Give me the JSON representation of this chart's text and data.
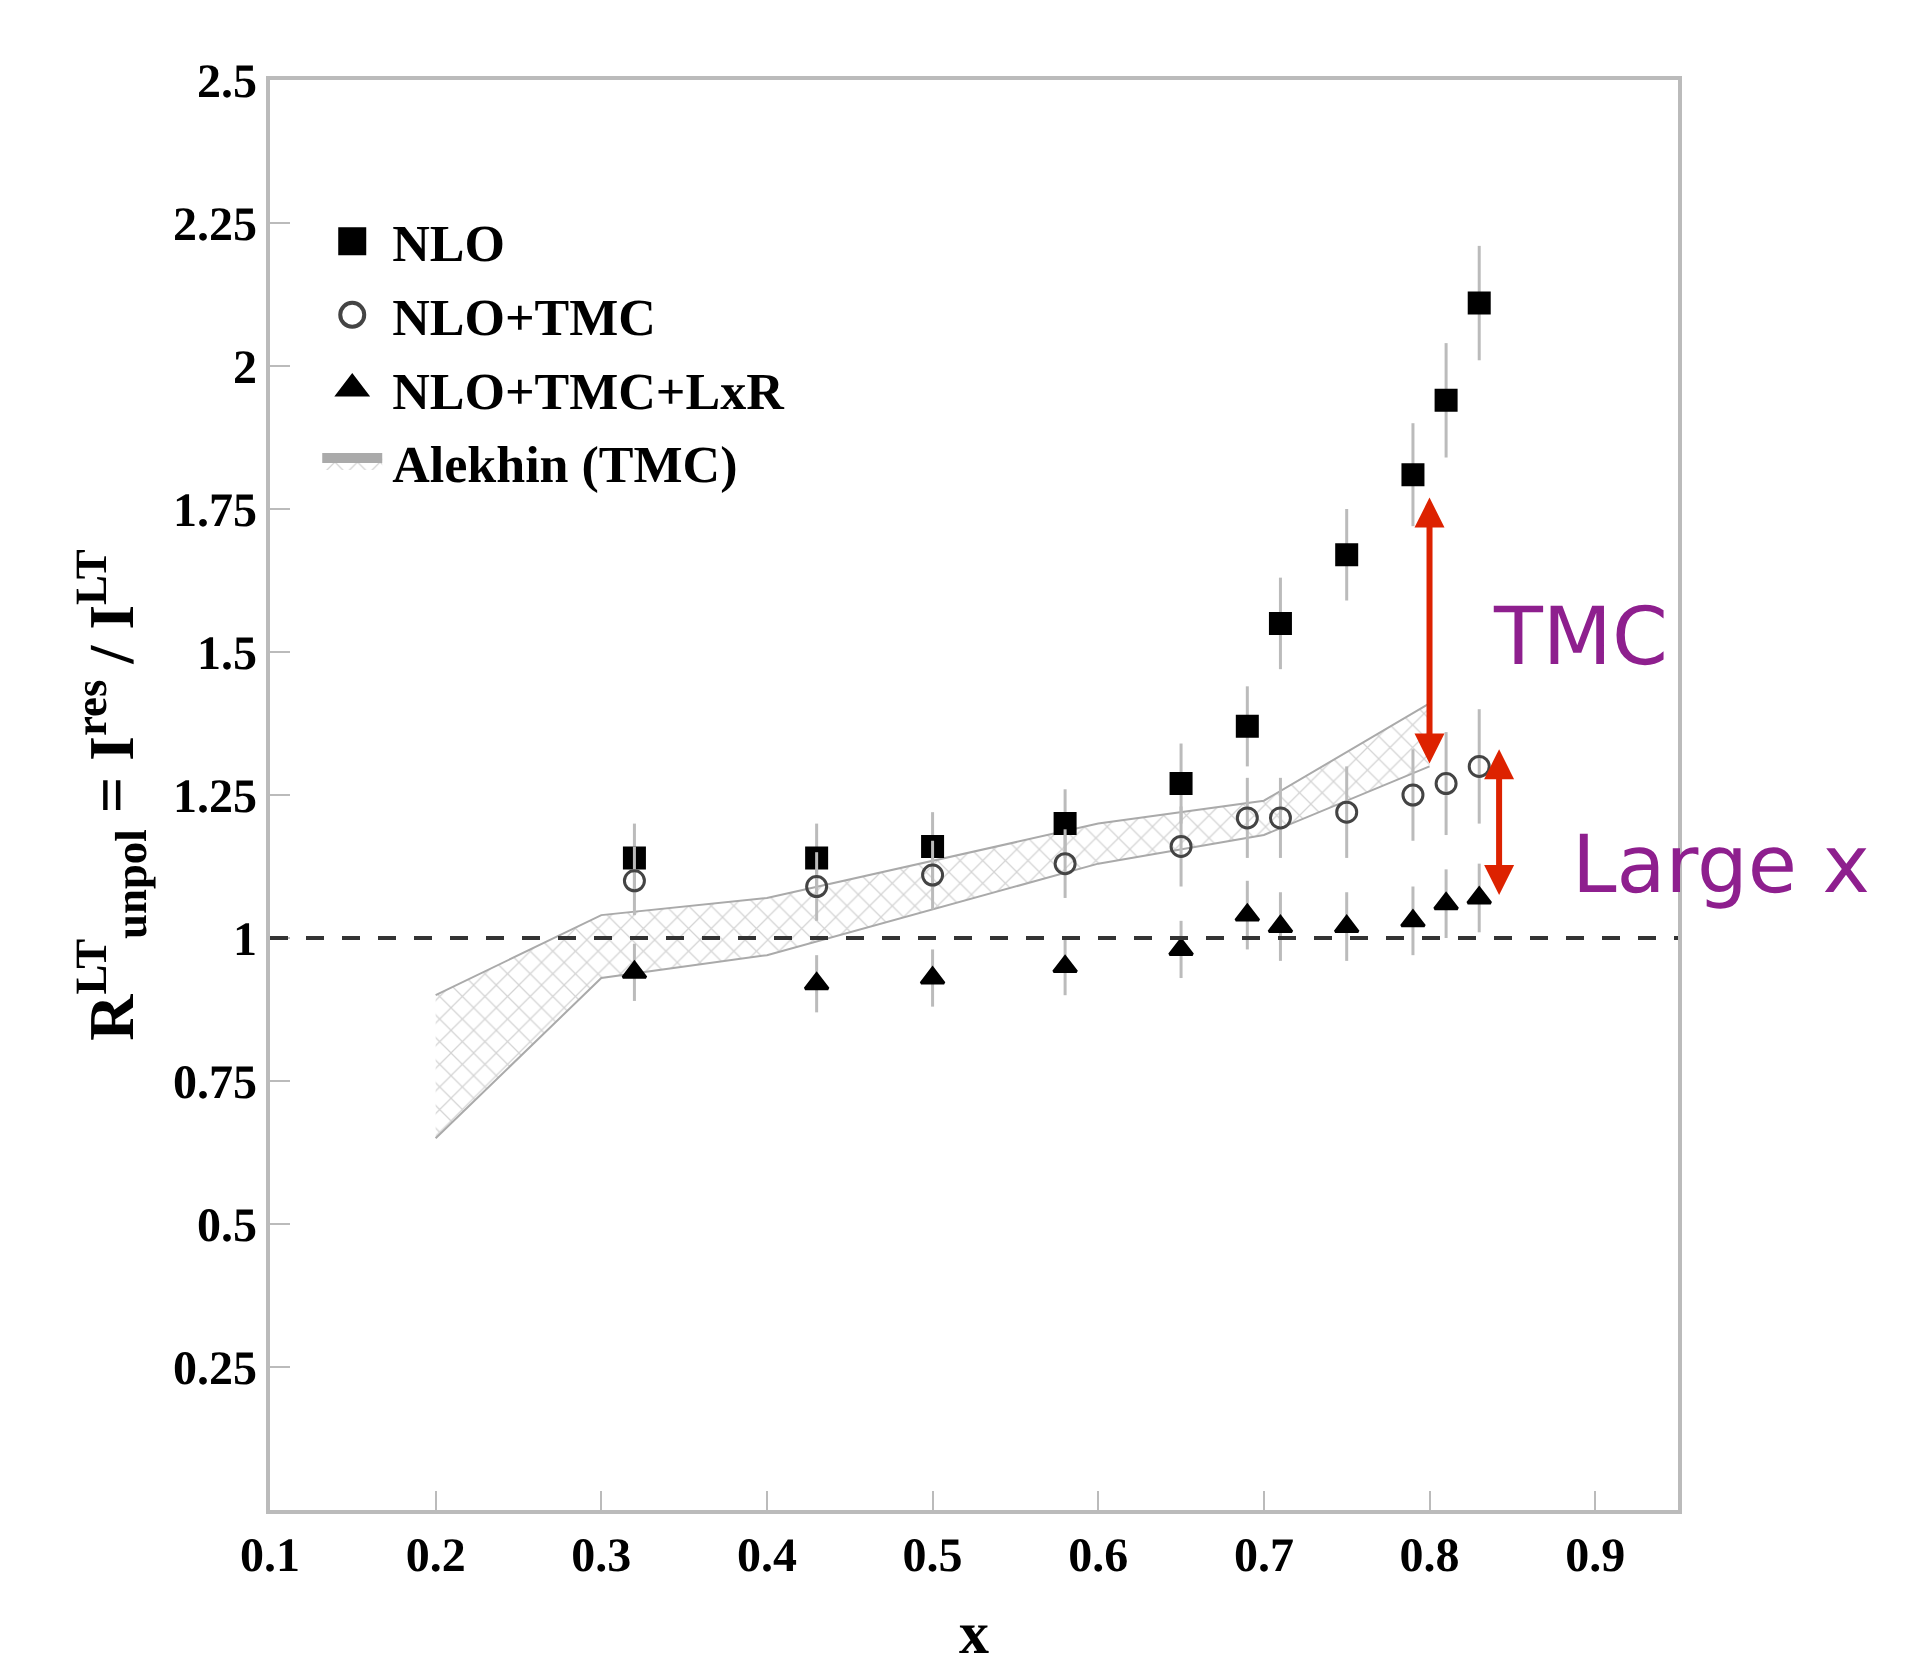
{
  "chart_data": {
    "type": "scatter",
    "xlabel": "x",
    "ylabel": "R$^{LT}$$_{unpol}$ = I$^{res}$ / I$^{LT}$",
    "x": [
      0.32,
      0.43,
      0.5,
      0.58,
      0.65,
      0.69,
      0.71,
      0.75,
      0.79,
      0.81,
      0.83
    ],
    "series": [
      {
        "name": "NLO",
        "color": "#000000",
        "marker": "square",
        "values": [
          1.14,
          1.14,
          1.16,
          1.2,
          1.27,
          1.37,
          1.55,
          1.67,
          1.81,
          1.94,
          2.11
        ],
        "errors": [
          0.06,
          0.06,
          0.06,
          0.06,
          0.07,
          0.07,
          0.08,
          0.08,
          0.09,
          0.1,
          0.1
        ]
      },
      {
        "name": "NLO+TMC",
        "color": "#444444",
        "marker": "circle",
        "values": [
          1.1,
          1.09,
          1.11,
          1.13,
          1.16,
          1.21,
          1.21,
          1.22,
          1.25,
          1.27,
          1.3
        ],
        "errors": [
          0.06,
          0.06,
          0.06,
          0.06,
          0.07,
          0.07,
          0.07,
          0.08,
          0.08,
          0.09,
          0.1
        ]
      },
      {
        "name": "NLO+TMC+LxR",
        "color": "#000000",
        "marker": "triangle",
        "values": [
          0.94,
          0.92,
          0.93,
          0.95,
          0.98,
          1.04,
          1.02,
          1.02,
          1.03,
          1.06,
          1.07
        ],
        "errors": [
          0.05,
          0.05,
          0.05,
          0.05,
          0.05,
          0.06,
          0.06,
          0.06,
          0.06,
          0.06,
          0.06
        ]
      },
      {
        "type": "line",
        "color": "#aaaaaa",
        "x": [
          0.2,
          0.3,
          0.4,
          0.6,
          0.7,
          0.8
        ],
        "values": [
          0.65,
          0.93,
          0.97,
          1.13,
          1.18,
          1.3
        ]
      },
      {
        "name": "Alekhin (TMC)",
        "type": "area",
        "color": "#aaaaaa",
        "x": [
          0.2,
          0.3,
          0.4,
          0.6,
          0.7,
          0.8
        ],
        "values": [
          0.9,
          1.04,
          1.07,
          1.2,
          1.24,
          1.41
        ]
      }
    ],
    "ref_lines": [
      {
        "axis": "y",
        "value": 1,
        "color": "#333333",
        "line_style": "dashed"
      }
    ],
    "annotations": [
      "TMC",
      "Large x"
    ],
    "xlim": [
      0.1,
      0.95
    ],
    "ylim": [
      0,
      2.5
    ],
    "xticks": [
      0.1,
      0.2,
      0.3,
      0.4,
      0.5,
      0.6,
      0.7,
      0.8,
      0.9
    ],
    "yticks": [
      0.25,
      0.5,
      0.75,
      1,
      1.25,
      1.5,
      1.75,
      2,
      2.25,
      2.5
    ],
    "legend": "top left"
  }
}
